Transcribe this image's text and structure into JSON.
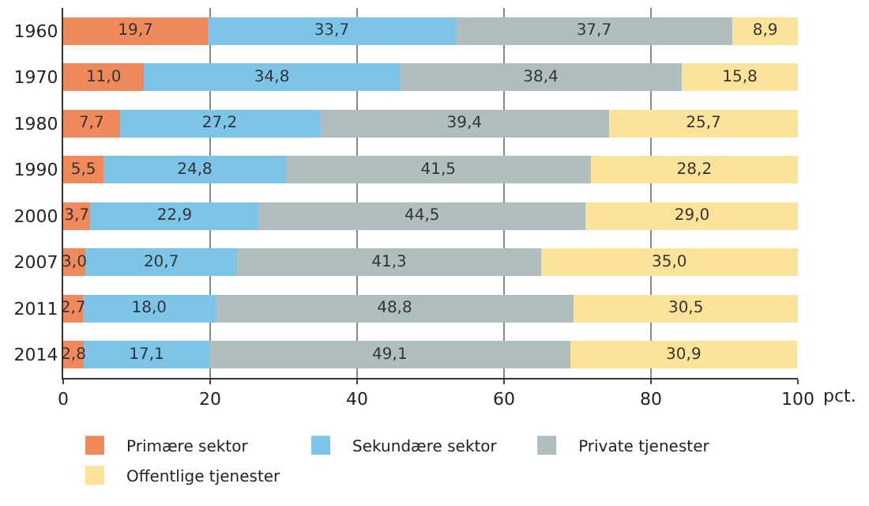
{
  "chart_data": {
    "type": "bar",
    "orientation": "horizontal",
    "stacked": true,
    "xlabel": "pct.",
    "categories": [
      "1960",
      "1970",
      "1980",
      "1990",
      "2000",
      "2007",
      "2011",
      "2014"
    ],
    "series": [
      {
        "name": "Primære sektor",
        "color": "#f08a5d",
        "values": [
          19.7,
          11.0,
          7.7,
          5.5,
          3.7,
          3.0,
          2.7,
          2.8
        ],
        "value_labels": [
          "19,7",
          "11,0",
          "7,7",
          "5,5",
          "3,7",
          "3,0",
          "2,7",
          "2,8"
        ]
      },
      {
        "name": "Sekundære sektor",
        "color": "#7cc5e8",
        "values": [
          33.7,
          34.8,
          27.2,
          24.8,
          22.9,
          20.7,
          18.0,
          17.1
        ],
        "value_labels": [
          "33,7",
          "34,8",
          "27,2",
          "24,8",
          "22,9",
          "20,7",
          "18,0",
          "17,1"
        ]
      },
      {
        "name": "Private tjenester",
        "color": "#b0bec0",
        "values": [
          37.7,
          38.4,
          39.4,
          41.5,
          44.5,
          41.3,
          48.8,
          49.1
        ],
        "value_labels": [
          "37,7",
          "38,4",
          "39,4",
          "41,5",
          "44,5",
          "41,3",
          "48,8",
          "49,1"
        ]
      },
      {
        "name": "Offentlige tjenester",
        "color": "#fde29a",
        "values": [
          8.9,
          15.8,
          25.7,
          28.2,
          29.0,
          35.0,
          30.5,
          30.9
        ],
        "value_labels": [
          "8,9",
          "15,8",
          "25,7",
          "28,2",
          "29,0",
          "35,0",
          "30,5",
          "30,9"
        ]
      }
    ],
    "xlim": [
      0,
      100
    ],
    "xticks": [
      0,
      20,
      40,
      60,
      80,
      100
    ],
    "grid": "x",
    "legend": "bottom"
  }
}
